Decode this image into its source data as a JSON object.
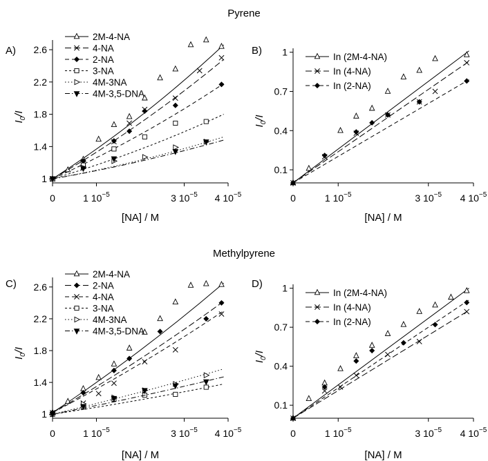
{
  "figure": {
    "group_titles": [
      "Pyrene",
      "Methylpyrene"
    ]
  },
  "chart_data": [
    {
      "panel_label": "A)",
      "type": "scatter",
      "group": "Pyrene",
      "xlabel": "[NA] / M",
      "ylabel_main": "I",
      "ylabel_sub": "0",
      "ylabel_tail": "/I",
      "xlim": [
        0,
        4e-05
      ],
      "ylim": [
        0.95,
        2.72
      ],
      "xticks": [
        {
          "value": 0,
          "mantissa": "0",
          "exp": ""
        },
        {
          "value": 1e-05,
          "mantissa": "1 10",
          "exp": "−5"
        },
        {
          "value": 3e-05,
          "mantissa": "3 10",
          "exp": "−5"
        },
        {
          "value": 4e-05,
          "mantissa": "4 10",
          "exp": "−5"
        }
      ],
      "yticks": [
        {
          "value": 1,
          "label": "1"
        },
        {
          "value": 1.4,
          "label": "1.4"
        },
        {
          "value": 1.8,
          "label": "1.8"
        },
        {
          "value": 2.2,
          "label": "2.2"
        },
        {
          "value": 2.6,
          "label": "2.6"
        }
      ],
      "legend_position": "top-left",
      "series": [
        {
          "name": "2M-4-NA",
          "marker": "triangle",
          "dash": "solid",
          "x": [
            0,
            3.5e-06,
            7e-06,
            1.05e-05,
            1.4e-05,
            1.75e-05,
            2.1e-05,
            2.45e-05,
            2.8e-05,
            3.15e-05,
            3.5e-05,
            3.85e-05
          ],
          "y": [
            1.0,
            1.11,
            1.24,
            1.49,
            1.67,
            1.77,
            2.0,
            2.25,
            2.36,
            2.66,
            2.72,
            2.64
          ],
          "fit_x": [
            0,
            3.9e-05
          ],
          "fit_y": [
            1.0,
            2.66
          ],
          "fit_curve": 0.45
        },
        {
          "name": "4-NA",
          "marker": "x",
          "dash": "longdash",
          "x": [
            0,
            7e-06,
            1.4e-05,
            1.75e-05,
            2.1e-05,
            2.8e-05,
            3.35e-05,
            3.85e-05
          ],
          "y": [
            1.0,
            1.2,
            1.46,
            1.69,
            1.86,
            2.0,
            2.34,
            2.5
          ],
          "fit_x": [
            0,
            3.9e-05
          ],
          "fit_y": [
            1.0,
            2.48
          ],
          "fit_curve": 0.4
        },
        {
          "name": "2-NA",
          "marker": "diamond",
          "dash": "dash",
          "x": [
            0,
            7e-06,
            1.4e-05,
            1.75e-05,
            2.1e-05,
            2.8e-05,
            3.85e-05
          ],
          "y": [
            1.0,
            1.22,
            1.47,
            1.59,
            1.84,
            1.91,
            2.17
          ],
          "fit_x": [
            0,
            3.9e-05
          ],
          "fit_y": [
            1.0,
            2.18
          ],
          "fit_curve": 0.35
        },
        {
          "name": "3-NA",
          "marker": "square",
          "dash": "shortdash",
          "x": [
            0,
            7e-06,
            1.4e-05,
            2.1e-05,
            2.8e-05,
            3.5e-05
          ],
          "y": [
            1.0,
            1.17,
            1.37,
            1.52,
            1.69,
            1.71
          ],
          "fit_x": [
            0,
            3.9e-05
          ],
          "fit_y": [
            1.0,
            1.8
          ],
          "fit_curve": 0.3
        },
        {
          "name": "4M-3NA",
          "marker": "triangle-right",
          "dash": "dot",
          "x": [
            0,
            7e-06,
            1.4e-05,
            2.1e-05,
            2.8e-05,
            3.5e-05
          ],
          "y": [
            1.0,
            1.14,
            1.22,
            1.27,
            1.39,
            1.46
          ],
          "fit_x": [
            0,
            3.9e-05
          ],
          "fit_y": [
            1.0,
            1.52
          ],
          "fit_curve": 0.25
        },
        {
          "name": "4M-3,5-DNA",
          "marker": "triangle-down",
          "dash": "dashdot",
          "x": [
            0,
            7e-06,
            1.4e-05,
            2.8e-05,
            3.5e-05
          ],
          "y": [
            1.0,
            1.13,
            1.25,
            1.34,
            1.46
          ],
          "fit_x": [
            0,
            3.9e-05
          ],
          "fit_y": [
            1.0,
            1.48
          ],
          "fit_curve": 0.2
        }
      ]
    },
    {
      "panel_label": "B)",
      "type": "scatter",
      "group": "Pyrene",
      "xlabel": "[NA] / M",
      "ylabel_main": "I",
      "ylabel_sub": "0",
      "ylabel_tail": "/I",
      "xlim": [
        0,
        4e-05
      ],
      "ylim": [
        0.0,
        1.03
      ],
      "xticks": [
        {
          "value": 0,
          "mantissa": "0",
          "exp": ""
        },
        {
          "value": 1e-05,
          "mantissa": "1 10",
          "exp": "−5"
        },
        {
          "value": 3e-05,
          "mantissa": "3 10",
          "exp": "−5"
        },
        {
          "value": 4e-05,
          "mantissa": "4 10",
          "exp": "−5"
        }
      ],
      "yticks": [
        {
          "value": 0.1,
          "label": "0.1"
        },
        {
          "value": 0.4,
          "label": "0.4"
        },
        {
          "value": 0.7,
          "label": "0.7"
        },
        {
          "value": 1.0,
          "label": "1"
        }
      ],
      "legend_position": "top-left",
      "series": [
        {
          "name": "In (2M-4-NA)",
          "marker": "triangle",
          "dash": "solid",
          "x": [
            0,
            3.5e-06,
            1.05e-05,
            1.4e-05,
            1.75e-05,
            2.1e-05,
            2.45e-05,
            2.8e-05,
            3.15e-05,
            3.85e-05
          ],
          "y": [
            0.0,
            0.11,
            0.4,
            0.51,
            0.57,
            0.7,
            0.81,
            0.86,
            0.95,
            0.98
          ],
          "fit_x": [
            0,
            3.9e-05
          ],
          "fit_y": [
            0.0,
            1.01
          ],
          "fit_curve": 0
        },
        {
          "name": "In (4-NA)",
          "marker": "x",
          "dash": "longdash",
          "x": [
            0,
            7e-06,
            1.4e-05,
            2.1e-05,
            2.8e-05,
            3.15e-05,
            3.85e-05
          ],
          "y": [
            0.0,
            0.2,
            0.38,
            0.52,
            0.62,
            0.7,
            0.92
          ],
          "fit_x": [
            0,
            3.9e-05
          ],
          "fit_y": [
            0.0,
            0.93
          ],
          "fit_curve": 0
        },
        {
          "name": "In (2-NA)",
          "marker": "diamond",
          "dash": "dash",
          "x": [
            0,
            7e-06,
            1.4e-05,
            1.75e-05,
            2.1e-05,
            2.8e-05,
            3.85e-05
          ],
          "y": [
            0.0,
            0.21,
            0.39,
            0.46,
            0.52,
            0.62,
            0.78
          ],
          "fit_x": [
            0,
            3.9e-05
          ],
          "fit_y": [
            0.0,
            0.79
          ],
          "fit_curve": 0
        }
      ]
    },
    {
      "panel_label": "C)",
      "type": "scatter",
      "group": "Methylpyrene",
      "xlabel": "[NA] / M",
      "ylabel_main": "I",
      "ylabel_sub": "0",
      "ylabel_tail": "/I",
      "xlim": [
        0,
        4e-05
      ],
      "ylim": [
        0.95,
        2.72
      ],
      "xticks": [
        {
          "value": 0,
          "mantissa": "0",
          "exp": ""
        },
        {
          "value": 1e-05,
          "mantissa": "1 10",
          "exp": "−5"
        },
        {
          "value": 3e-05,
          "mantissa": "3 10",
          "exp": "−5"
        },
        {
          "value": 4e-05,
          "mantissa": "4 10",
          "exp": "−5"
        }
      ],
      "yticks": [
        {
          "value": 1,
          "label": "1"
        },
        {
          "value": 1.4,
          "label": "1.4"
        },
        {
          "value": 1.8,
          "label": "1.8"
        },
        {
          "value": 2.2,
          "label": "2.2"
        },
        {
          "value": 2.6,
          "label": "2.6"
        }
      ],
      "legend_position": "top-left",
      "series": [
        {
          "name": "2M-4-NA",
          "marker": "triangle",
          "dash": "solid",
          "x": [
            0,
            3.5e-06,
            7e-06,
            1.05e-05,
            1.4e-05,
            1.75e-05,
            2.1e-05,
            2.45e-05,
            2.8e-05,
            3.15e-05,
            3.5e-05,
            3.85e-05
          ],
          "y": [
            1.02,
            1.16,
            1.32,
            1.46,
            1.63,
            1.83,
            2.03,
            2.2,
            2.41,
            2.62,
            2.64,
            2.63
          ],
          "fit_x": [
            0,
            3.9e-05
          ],
          "fit_y": [
            1.02,
            2.65
          ],
          "fit_curve": 0.3
        },
        {
          "name": "2-NA",
          "marker": "diamond",
          "dash": "longdash",
          "x": [
            0,
            7e-06,
            1.4e-05,
            1.75e-05,
            2.45e-05,
            3.5e-05,
            3.85e-05
          ],
          "y": [
            1.02,
            1.27,
            1.55,
            1.7,
            2.04,
            2.2,
            2.4
          ],
          "fit_x": [
            0,
            3.9e-05
          ],
          "fit_y": [
            1.02,
            2.42
          ],
          "fit_curve": 0.25
        },
        {
          "name": "4-NA",
          "marker": "x",
          "dash": "dash",
          "x": [
            0,
            7e-06,
            1.05e-05,
            1.4e-05,
            2.1e-05,
            2.8e-05,
            3.85e-05
          ],
          "y": [
            1.02,
            1.14,
            1.26,
            1.39,
            1.66,
            1.81,
            2.26
          ],
          "fit_x": [
            0,
            3.9e-05
          ],
          "fit_y": [
            1.02,
            2.3
          ],
          "fit_curve": 0.25
        },
        {
          "name": "3-NA",
          "marker": "square",
          "dash": "shortdash",
          "x": [
            0,
            7e-06,
            1.4e-05,
            2.1e-05,
            2.8e-05,
            3.5e-05
          ],
          "y": [
            1.0,
            1.09,
            1.19,
            1.24,
            1.25,
            1.34
          ],
          "fit_x": [
            0,
            3.9e-05
          ],
          "fit_y": [
            1.0,
            1.38
          ],
          "fit_curve": 0.1
        },
        {
          "name": "4M-3NA",
          "marker": "triangle-right",
          "dash": "dot",
          "x": [
            0,
            7e-06,
            1.4e-05,
            2.1e-05,
            2.8e-05,
            3.5e-05
          ],
          "y": [
            1.0,
            1.13,
            1.21,
            1.3,
            1.38,
            1.49
          ],
          "fit_x": [
            0,
            3.9e-05
          ],
          "fit_y": [
            1.0,
            1.57
          ],
          "fit_curve": 0.1
        },
        {
          "name": "4M-3,5-DNA",
          "marker": "triangle-down",
          "dash": "dashdot",
          "x": [
            0,
            7e-06,
            1.4e-05,
            2.1e-05,
            2.8e-05,
            3.5e-05
          ],
          "y": [
            1.0,
            1.1,
            1.2,
            1.3,
            1.36,
            1.41
          ],
          "fit_x": [
            0,
            3.9e-05
          ],
          "fit_y": [
            1.0,
            1.47
          ],
          "fit_curve": 0.1
        }
      ]
    },
    {
      "panel_label": "D)",
      "type": "scatter",
      "group": "Methylpyrene",
      "xlabel": "[NA] / M",
      "ylabel_main": "I",
      "ylabel_sub": "0",
      "ylabel_tail": "/I",
      "xlim": [
        0,
        4e-05
      ],
      "ylim": [
        0.0,
        1.03
      ],
      "xticks": [
        {
          "value": 0,
          "mantissa": "0",
          "exp": ""
        },
        {
          "value": 1e-05,
          "mantissa": "1 10",
          "exp": "−5"
        },
        {
          "value": 3e-05,
          "mantissa": "3 10",
          "exp": "−5"
        },
        {
          "value": 4e-05,
          "mantissa": "4 10",
          "exp": "−5"
        }
      ],
      "yticks": [
        {
          "value": 0.1,
          "label": "0.1"
        },
        {
          "value": 0.4,
          "label": "0.4"
        },
        {
          "value": 0.7,
          "label": "0.7"
        },
        {
          "value": 1.0,
          "label": "1"
        }
      ],
      "legend_position": "top-left",
      "series": [
        {
          "name": "In (2M-4-NA)",
          "marker": "triangle",
          "dash": "solid",
          "x": [
            0,
            3.5e-06,
            7e-06,
            1.05e-05,
            1.4e-05,
            1.75e-05,
            2.1e-05,
            2.45e-05,
            2.8e-05,
            3.15e-05,
            3.5e-05,
            3.85e-05
          ],
          "y": [
            0.0,
            0.15,
            0.27,
            0.38,
            0.48,
            0.56,
            0.65,
            0.72,
            0.82,
            0.87,
            0.93,
            0.98
          ],
          "fit_x": [
            0,
            3.9e-05
          ],
          "fit_y": [
            0.0,
            1.0
          ],
          "fit_curve": 0
        },
        {
          "name": "In (4-NA)",
          "marker": "x",
          "dash": "longdash",
          "x": [
            0,
            7e-06,
            1.05e-05,
            1.4e-05,
            2.1e-05,
            2.8e-05,
            3.85e-05
          ],
          "y": [
            0.0,
            0.21,
            0.24,
            0.33,
            0.49,
            0.59,
            0.82
          ],
          "fit_x": [
            0,
            3.9e-05
          ],
          "fit_y": [
            0.0,
            0.83
          ],
          "fit_curve": 0
        },
        {
          "name": "In (2-NA)",
          "marker": "diamond",
          "dash": "dash",
          "x": [
            0,
            7e-06,
            1.4e-05,
            1.75e-05,
            2.45e-05,
            3.15e-05,
            3.85e-05
          ],
          "y": [
            0.0,
            0.24,
            0.44,
            0.52,
            0.58,
            0.72,
            0.89
          ],
          "fit_x": [
            0,
            3.9e-05
          ],
          "fit_y": [
            0.0,
            0.91
          ],
          "fit_curve": 0
        }
      ]
    }
  ]
}
